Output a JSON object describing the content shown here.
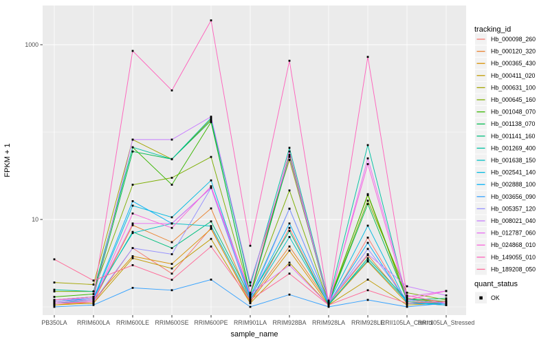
{
  "chart_data": {
    "type": "line",
    "title": "",
    "xlabel": "sample_name",
    "ylabel": "FPKM + 1",
    "y_scale": "log10",
    "y_tick_values": [
      10,
      1000
    ],
    "y_tick_labels": [
      "10",
      "1000"
    ],
    "y_minor_gridlines": [
      1,
      100
    ],
    "ylim": [
      0.8,
      2800
    ],
    "grid": true,
    "legend_position": "right",
    "panel_background": "#EBEBEB",
    "gridline_color": "#FFFFFF",
    "point_color": "#000000",
    "axis_text_color": "#4D4D4D",
    "legend_key_background": "#F2F2F2",
    "categories": [
      "PB350LA",
      "RRIM600LA",
      "RRIM600LE",
      "RRIM600SE",
      "RRIM600PE",
      "RRIM901LA",
      "RRIM928BA",
      "RRIM928LA",
      "RRIM928LE",
      "RRII105LA_Control",
      "RRII105LA_Stressed"
    ],
    "legend": {
      "color_title": "tracking_id",
      "shape_title": "quant_status",
      "shape_items": [
        "OK"
      ]
    },
    "series": [
      {
        "name": "Hb_000098_260",
        "color": "#F8766D",
        "values": [
          1.1,
          1.1,
          4.7,
          2.4,
          8.0,
          1.1,
          8.0,
          1.05,
          6.2,
          1.1,
          1.05
        ]
      },
      {
        "name": "Hb_000120_320",
        "color": "#EA8331",
        "values": [
          1.05,
          1.15,
          8.6,
          5.5,
          13.4,
          1.2,
          4.9,
          1.1,
          3.9,
          1.15,
          1.1
        ]
      },
      {
        "name": "Hb_000365_430",
        "color": "#D89000",
        "values": [
          1.1,
          1.2,
          3.8,
          3.1,
          7.8,
          1.15,
          4.4,
          1.05,
          3.3,
          1.1,
          1.05
        ]
      },
      {
        "name": "Hb_000411_020",
        "color": "#C09B00",
        "values": [
          1.05,
          1.1,
          3.6,
          2.75,
          6.0,
          1.1,
          3.2,
          1.05,
          2.05,
          1.05,
          1.1
        ]
      },
      {
        "name": "Hb_000631_100",
        "color": "#A3A500",
        "values": [
          1.9,
          1.8,
          82,
          49,
          140,
          1.9,
          48,
          1.15,
          19,
          1.2,
          1.15
        ]
      },
      {
        "name": "Hb_000645_160",
        "color": "#7CAE00",
        "values": [
          1.5,
          1.5,
          25,
          30,
          52,
          1.4,
          21.5,
          1.1,
          16.4,
          1.45,
          1.2
        ]
      },
      {
        "name": "Hb_001048_070",
        "color": "#39B600",
        "values": [
          1.3,
          1.4,
          67,
          25,
          130,
          1.4,
          55,
          1.1,
          19.5,
          1.25,
          1.15
        ]
      },
      {
        "name": "Hb_001138_070",
        "color": "#00BB4E",
        "values": [
          1.2,
          1.3,
          60,
          49,
          135,
          1.35,
          52,
          1.1,
          15,
          1.2,
          1.1
        ]
      },
      {
        "name": "Hb_001141_160",
        "color": "#00BF7D",
        "values": [
          1.15,
          1.25,
          7.2,
          4.7,
          9.5,
          1.3,
          7.4,
          1.05,
          3.6,
          1.2,
          1.25
        ]
      },
      {
        "name": "Hb_001269_400",
        "color": "#00C1A3",
        "values": [
          1.57,
          1.5,
          67,
          49,
          145,
          1.75,
          66,
          1.18,
          71,
          1.2,
          1.1
        ]
      },
      {
        "name": "Hb_001638_150",
        "color": "#00BFC4",
        "values": [
          1.2,
          1.3,
          7.0,
          9.0,
          8.4,
          1.2,
          6.3,
          1.08,
          3.4,
          1.15,
          1.05
        ]
      },
      {
        "name": "Hb_002541_140",
        "color": "#00BAE0",
        "values": [
          1.1,
          1.2,
          14.4,
          10.6,
          28,
          1.3,
          13.3,
          1.12,
          8.5,
          1.1,
          1.1
        ]
      },
      {
        "name": "Hb_002888_100",
        "color": "#00B0F6",
        "values": [
          1.15,
          1.25,
          16.2,
          9.0,
          23,
          1.25,
          9.0,
          1.1,
          5.4,
          1.1,
          1.05
        ]
      },
      {
        "name": "Hb_003656_090",
        "color": "#35A2FF",
        "values": [
          1.0,
          1.05,
          1.65,
          1.55,
          2.05,
          1.0,
          1.38,
          1.0,
          1.2,
          1.0,
          1.1
        ]
      },
      {
        "name": "Hb_005357_120",
        "color": "#9590FF",
        "values": [
          1.1,
          1.15,
          4.7,
          4.0,
          23,
          1.2,
          13.3,
          1.1,
          4.6,
          1.2,
          1.1
        ]
      },
      {
        "name": "Hb_008021_040",
        "color": "#C77CFF",
        "values": [
          1.2,
          1.25,
          82,
          82,
          150,
          1.9,
          52,
          1.15,
          4.0,
          1.72,
          1.35
        ]
      },
      {
        "name": "Hb_012787_060",
        "color": "#E76BF3",
        "values": [
          1.15,
          1.2,
          9.0,
          9.0,
          23,
          1.4,
          3.0,
          1.05,
          50,
          1.3,
          1.52
        ]
      },
      {
        "name": "Hb_024868_010",
        "color": "#FA62DB",
        "values": [
          1.1,
          1.15,
          11.7,
          8.0,
          24,
          1.45,
          60,
          1.12,
          43,
          1.2,
          1.52
        ]
      },
      {
        "name": "Hb_149055_010",
        "color": "#FF62BC",
        "values": [
          1.2,
          1.3,
          850,
          300,
          1900,
          5.0,
          655,
          1.1,
          725,
          1.35,
          1.1
        ]
      },
      {
        "name": "Hb_189208_050",
        "color": "#FF6A98",
        "values": [
          3.5,
          2.0,
          3.0,
          2.04,
          4.9,
          1.2,
          2.4,
          1.05,
          1.55,
          1.1,
          1.15
        ]
      }
    ]
  }
}
